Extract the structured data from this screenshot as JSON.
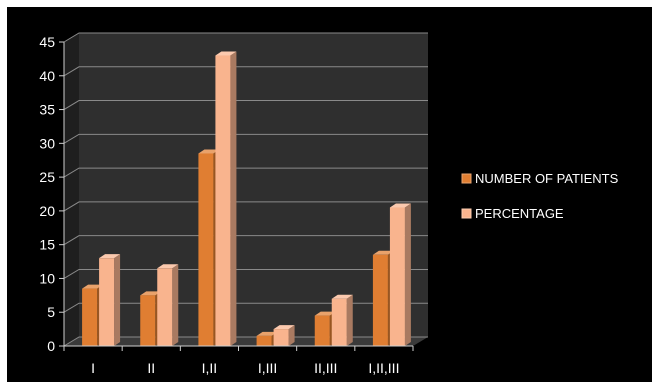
{
  "chart_data": {
    "type": "bar",
    "categories": [
      "I",
      "II",
      "I,II",
      "I,III",
      "II,III",
      "I,II,III"
    ],
    "series": [
      {
        "name": "NUMBER OF PATIENTS",
        "values": [
          8.5,
          7.5,
          28.5,
          1.5,
          4.5,
          13.5
        ],
        "color": "#e07e32"
      },
      {
        "name": "PERCENTAGE",
        "values": [
          13,
          11.5,
          43,
          2.5,
          7,
          20.5
        ],
        "color": "#f9b48e"
      }
    ],
    "ylim": [
      0,
      45
    ],
    "yticks": [
      0,
      5,
      10,
      15,
      20,
      25,
      30,
      35,
      40,
      45
    ],
    "grid": true,
    "style": "3d",
    "legend": "right",
    "background": "#000000",
    "plot_wall": "#2f2f2f",
    "grid_color": "#8a8a8a"
  }
}
